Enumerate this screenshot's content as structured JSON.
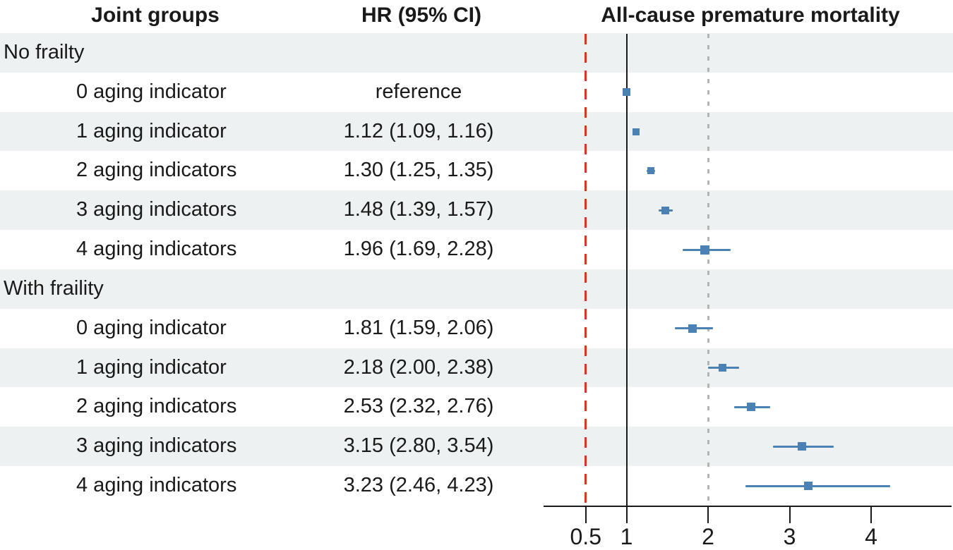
{
  "header": {
    "joint_groups": "Joint groups",
    "hr_ci": "HR (95% CI)",
    "outcome": "All-cause premature mortality"
  },
  "colors": {
    "band": "#edf1f1",
    "marker_blue": "#4c81b3",
    "ref_red": "#d03a26",
    "ref_black": "#1a1a1a",
    "ref_gray": "#b4b4b4",
    "text": "#1a1a1a"
  },
  "chart_data": {
    "type": "forest",
    "title": "All-cause premature mortality",
    "xlabel": "",
    "scale": "linear",
    "x_range": [
      0,
      5
    ],
    "x_ticks": [
      0.5,
      1,
      2,
      3,
      4
    ],
    "x_tick_labels": [
      "0.5",
      "1",
      "2",
      "3",
      "4"
    ],
    "grid": false,
    "reference_lines": [
      {
        "value": 0.5,
        "style": "dashed",
        "color": "#d03a26"
      },
      {
        "value": 1.0,
        "style": "solid",
        "color": "#1a1a1a"
      },
      {
        "value": 2.0,
        "style": "dotted",
        "color": "#b4b4b4"
      }
    ],
    "rows": [
      {
        "kind": "group",
        "label": "No frailty"
      },
      {
        "kind": "item",
        "label": "0 aging indicator",
        "hr_text": "reference",
        "est": 1.0,
        "lo": null,
        "hi": null,
        "marker_px": 11
      },
      {
        "kind": "item",
        "label": "1 aging indicator",
        "hr_text": "1.12 (1.09, 1.16)",
        "est": 1.12,
        "lo": 1.09,
        "hi": 1.16,
        "marker_px": 10
      },
      {
        "kind": "item",
        "label": "2 aging indicators",
        "hr_text": "1.30 (1.25, 1.35)",
        "est": 1.3,
        "lo": 1.25,
        "hi": 1.35,
        "marker_px": 10
      },
      {
        "kind": "item",
        "label": "3 aging indicators",
        "hr_text": "1.48 (1.39, 1.57)",
        "est": 1.48,
        "lo": 1.39,
        "hi": 1.57,
        "marker_px": 11
      },
      {
        "kind": "item",
        "label": "4 aging indicators",
        "hr_text": "1.96 (1.69, 2.28)",
        "est": 1.96,
        "lo": 1.69,
        "hi": 2.28,
        "marker_px": 13
      },
      {
        "kind": "group",
        "label": "With fraility"
      },
      {
        "kind": "item",
        "label": "0 aging indicator",
        "hr_text": "1.81 (1.59, 2.06)",
        "est": 1.81,
        "lo": 1.59,
        "hi": 2.06,
        "marker_px": 12
      },
      {
        "kind": "item",
        "label": "1 aging indicator",
        "hr_text": "2.18 (2.00, 2.38)",
        "est": 2.18,
        "lo": 2.0,
        "hi": 2.38,
        "marker_px": 11
      },
      {
        "kind": "item",
        "label": "2 aging indicators",
        "hr_text": "2.53 (2.32, 2.76)",
        "est": 2.53,
        "lo": 2.32,
        "hi": 2.76,
        "marker_px": 12
      },
      {
        "kind": "item",
        "label": "3 aging indicators",
        "hr_text": "3.15 (2.80, 3.54)",
        "est": 3.15,
        "lo": 2.8,
        "hi": 3.54,
        "marker_px": 12
      },
      {
        "kind": "item",
        "label": "4 aging indicators",
        "hr_text": "3.23 (2.46, 4.23)",
        "est": 3.23,
        "lo": 2.46,
        "hi": 4.23,
        "marker_px": 12
      }
    ]
  }
}
